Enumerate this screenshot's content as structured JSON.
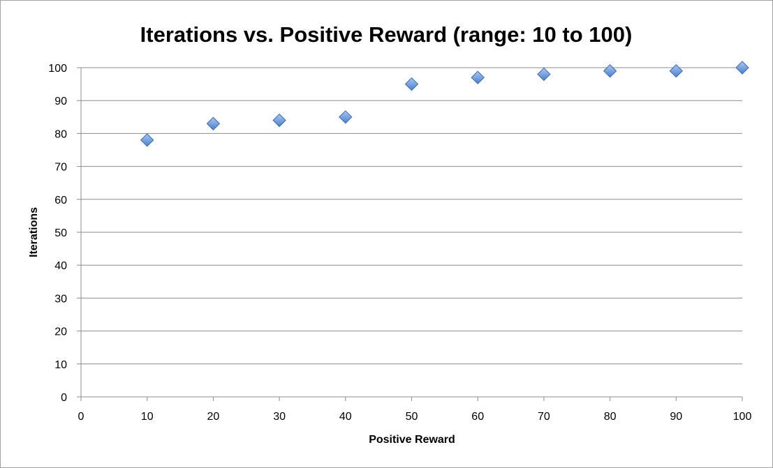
{
  "chart_data": {
    "type": "scatter",
    "title": "Iterations vs. Positive Reward (range: 10 to 100)",
    "xlabel": "Positive Reward",
    "ylabel": "Iterations",
    "xlim": [
      0,
      100
    ],
    "ylim": [
      0,
      100
    ],
    "xticks": [
      0,
      10,
      20,
      30,
      40,
      50,
      60,
      70,
      80,
      90,
      100
    ],
    "yticks": [
      0,
      10,
      20,
      30,
      40,
      50,
      60,
      70,
      80,
      90,
      100
    ],
    "grid": true,
    "legend": "none",
    "marker": "diamond",
    "marker_color": "#5b8fd9",
    "x": [
      10,
      20,
      30,
      40,
      50,
      60,
      70,
      80,
      90,
      100
    ],
    "y": [
      78,
      83,
      84,
      85,
      95,
      97,
      98,
      99,
      99,
      100
    ]
  }
}
